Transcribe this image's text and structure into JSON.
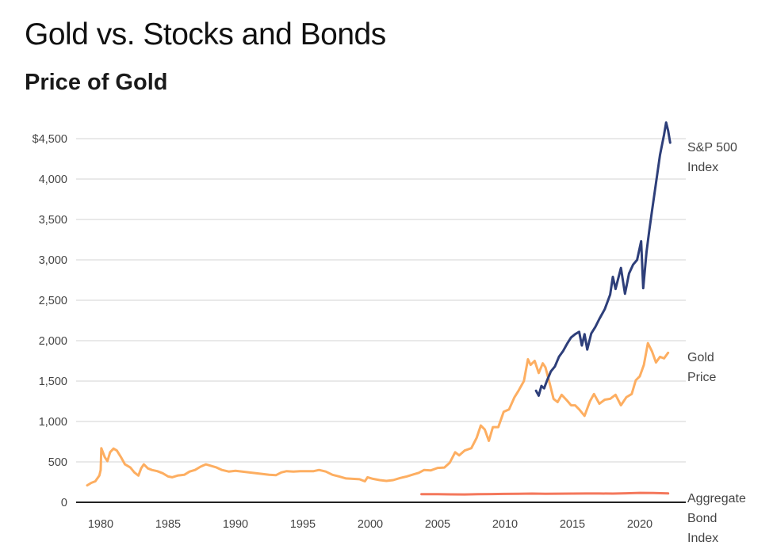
{
  "header": {
    "title": "Gold vs. Stocks and Bonds",
    "subtitle": "Price of Gold"
  },
  "chart_data": {
    "type": "line",
    "title": "Gold vs. Stocks and Bonds",
    "subtitle": "Price of Gold",
    "xlabel": "",
    "ylabel": "",
    "xlim": [
      1978.8,
      2024.0
    ],
    "ylim": [
      0,
      4500
    ],
    "grid": true,
    "legend": "direct-labels-right",
    "x_ticks": [
      1980,
      1985,
      1990,
      1995,
      2000,
      2005,
      2010,
      2015,
      2020
    ],
    "x_tick_labels": [
      "1980",
      "1985",
      "1990",
      "1995",
      "2000",
      "2005",
      "2010",
      "2015",
      "2020"
    ],
    "y_ticks": [
      0,
      500,
      1000,
      1500,
      2000,
      2500,
      3000,
      3500,
      4000,
      4500
    ],
    "y_tick_labels": [
      "0",
      "500",
      "1,000",
      "1,500",
      "2,000",
      "2,500",
      "3,000",
      "3,500",
      "4,000",
      "$4,500"
    ],
    "series": [
      {
        "name": "Gold Price",
        "label_lines": [
          "Gold",
          "Price"
        ],
        "color": "#fdae61",
        "points": [
          [
            1979.0,
            210
          ],
          [
            1979.3,
            240
          ],
          [
            1979.6,
            260
          ],
          [
            1979.9,
            330
          ],
          [
            1980.0,
            400
          ],
          [
            1980.05,
            670
          ],
          [
            1980.3,
            560
          ],
          [
            1980.5,
            510
          ],
          [
            1980.7,
            620
          ],
          [
            1980.95,
            665
          ],
          [
            1981.2,
            640
          ],
          [
            1981.5,
            560
          ],
          [
            1981.8,
            470
          ],
          [
            1982.2,
            430
          ],
          [
            1982.5,
            370
          ],
          [
            1982.8,
            330
          ],
          [
            1983.0,
            420
          ],
          [
            1983.2,
            470
          ],
          [
            1983.5,
            420
          ],
          [
            1983.8,
            400
          ],
          [
            1984.2,
            385
          ],
          [
            1984.6,
            360
          ],
          [
            1985.0,
            320
          ],
          [
            1985.3,
            310
          ],
          [
            1985.7,
            330
          ],
          [
            1986.2,
            340
          ],
          [
            1986.6,
            380
          ],
          [
            1987.0,
            400
          ],
          [
            1987.4,
            440
          ],
          [
            1987.8,
            470
          ],
          [
            1988.2,
            450
          ],
          [
            1988.6,
            430
          ],
          [
            1989.0,
            400
          ],
          [
            1989.5,
            380
          ],
          [
            1990.0,
            390
          ],
          [
            1990.5,
            380
          ],
          [
            1991.0,
            370
          ],
          [
            1991.5,
            360
          ],
          [
            1992.0,
            350
          ],
          [
            1992.5,
            340
          ],
          [
            1993.0,
            335
          ],
          [
            1993.4,
            370
          ],
          [
            1993.8,
            385
          ],
          [
            1994.3,
            380
          ],
          [
            1994.8,
            385
          ],
          [
            1995.3,
            385
          ],
          [
            1995.8,
            385
          ],
          [
            1996.2,
            400
          ],
          [
            1996.7,
            380
          ],
          [
            1997.2,
            340
          ],
          [
            1997.7,
            320
          ],
          [
            1998.2,
            295
          ],
          [
            1998.7,
            290
          ],
          [
            1999.2,
            285
          ],
          [
            1999.6,
            260
          ],
          [
            1999.8,
            310
          ],
          [
            2000.2,
            290
          ],
          [
            2000.7,
            275
          ],
          [
            2001.2,
            265
          ],
          [
            2001.7,
            275
          ],
          [
            2002.2,
            300
          ],
          [
            2002.7,
            320
          ],
          [
            2003.2,
            345
          ],
          [
            2003.6,
            365
          ],
          [
            2004.0,
            400
          ],
          [
            2004.5,
            395
          ],
          [
            2005.0,
            425
          ],
          [
            2005.5,
            430
          ],
          [
            2005.9,
            490
          ],
          [
            2006.3,
            620
          ],
          [
            2006.6,
            580
          ],
          [
            2007.0,
            640
          ],
          [
            2007.5,
            670
          ],
          [
            2007.9,
            800
          ],
          [
            2008.2,
            950
          ],
          [
            2008.5,
            900
          ],
          [
            2008.8,
            760
          ],
          [
            2009.1,
            930
          ],
          [
            2009.5,
            930
          ],
          [
            2009.9,
            1120
          ],
          [
            2010.3,
            1150
          ],
          [
            2010.7,
            1300
          ],
          [
            2011.0,
            1380
          ],
          [
            2011.4,
            1500
          ],
          [
            2011.7,
            1770
          ],
          [
            2011.9,
            1700
          ],
          [
            2012.2,
            1750
          ],
          [
            2012.5,
            1600
          ],
          [
            2012.8,
            1720
          ],
          [
            2013.0,
            1670
          ],
          [
            2013.3,
            1480
          ],
          [
            2013.6,
            1280
          ],
          [
            2013.9,
            1240
          ],
          [
            2014.2,
            1330
          ],
          [
            2014.6,
            1260
          ],
          [
            2014.9,
            1200
          ],
          [
            2015.2,
            1200
          ],
          [
            2015.5,
            1150
          ],
          [
            2015.9,
            1070
          ],
          [
            2016.3,
            1250
          ],
          [
            2016.6,
            1340
          ],
          [
            2017.0,
            1220
          ],
          [
            2017.4,
            1270
          ],
          [
            2017.8,
            1280
          ],
          [
            2018.2,
            1330
          ],
          [
            2018.6,
            1200
          ],
          [
            2019.0,
            1300
          ],
          [
            2019.4,
            1340
          ],
          [
            2019.7,
            1510
          ],
          [
            2020.0,
            1560
          ],
          [
            2020.3,
            1700
          ],
          [
            2020.6,
            1970
          ],
          [
            2020.9,
            1870
          ],
          [
            2021.2,
            1730
          ],
          [
            2021.5,
            1800
          ],
          [
            2021.8,
            1780
          ],
          [
            2022.1,
            1850
          ]
        ]
      },
      {
        "name": "S&P 500 Index",
        "label_lines": [
          "S&P 500",
          "Index"
        ],
        "color": "#2e3f7a",
        "points": [
          [
            2012.3,
            1380
          ],
          [
            2012.5,
            1320
          ],
          [
            2012.7,
            1440
          ],
          [
            2012.9,
            1410
          ],
          [
            2013.1,
            1500
          ],
          [
            2013.4,
            1620
          ],
          [
            2013.7,
            1680
          ],
          [
            2014.0,
            1800
          ],
          [
            2014.3,
            1870
          ],
          [
            2014.6,
            1960
          ],
          [
            2014.9,
            2040
          ],
          [
            2015.2,
            2080
          ],
          [
            2015.5,
            2110
          ],
          [
            2015.7,
            1940
          ],
          [
            2015.9,
            2080
          ],
          [
            2016.1,
            1890
          ],
          [
            2016.4,
            2090
          ],
          [
            2016.7,
            2170
          ],
          [
            2017.0,
            2270
          ],
          [
            2017.4,
            2390
          ],
          [
            2017.8,
            2570
          ],
          [
            2018.0,
            2790
          ],
          [
            2018.2,
            2640
          ],
          [
            2018.6,
            2900
          ],
          [
            2018.9,
            2580
          ],
          [
            2019.2,
            2830
          ],
          [
            2019.5,
            2940
          ],
          [
            2019.8,
            3000
          ],
          [
            2020.1,
            3230
          ],
          [
            2020.25,
            2650
          ],
          [
            2020.5,
            3100
          ],
          [
            2020.7,
            3360
          ],
          [
            2020.9,
            3600
          ],
          [
            2021.2,
            3950
          ],
          [
            2021.5,
            4300
          ],
          [
            2021.8,
            4550
          ],
          [
            2021.95,
            4700
          ],
          [
            2022.1,
            4600
          ],
          [
            2022.25,
            4450
          ]
        ]
      },
      {
        "name": "Aggregate Bond Index",
        "label_lines": [
          "Aggregate",
          "Bond",
          "Index"
        ],
        "color": "#f4785c",
        "points": [
          [
            2003.8,
            100
          ],
          [
            2005.0,
            100
          ],
          [
            2006.0,
            98
          ],
          [
            2007.0,
            97
          ],
          [
            2008.0,
            100
          ],
          [
            2009.0,
            102
          ],
          [
            2010.0,
            104
          ],
          [
            2011.0,
            106
          ],
          [
            2012.0,
            108
          ],
          [
            2013.0,
            105
          ],
          [
            2014.0,
            107
          ],
          [
            2015.0,
            108
          ],
          [
            2016.0,
            109
          ],
          [
            2017.0,
            109
          ],
          [
            2018.0,
            108
          ],
          [
            2019.0,
            112
          ],
          [
            2020.0,
            117
          ],
          [
            2021.0,
            115
          ],
          [
            2022.1,
            110
          ]
        ]
      }
    ]
  }
}
